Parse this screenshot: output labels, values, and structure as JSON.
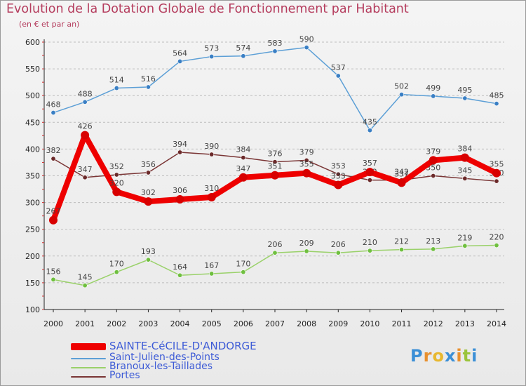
{
  "header": {
    "title": "Evolution de la Dotation Globale de Fonctionnement par Habitant",
    "subtitle": "(en € et par an)"
  },
  "logo": {
    "text": "Proxiti",
    "letters": [
      "P",
      "r",
      "o",
      "x",
      "i",
      "t",
      "i"
    ],
    "colors": [
      "#3b8fd6",
      "#e8902f",
      "#e8b82f",
      "#3b8fd6",
      "#e8902f",
      "#9ac43a",
      "#3b8fd6"
    ]
  },
  "chart_data": {
    "type": "line",
    "title": "Evolution de la Dotation Globale de Fonctionnement par Habitant",
    "ylabel": "(en € et par an)",
    "xlabel": "",
    "ylim": [
      100,
      600
    ],
    "yticks": [
      100,
      150,
      200,
      250,
      300,
      350,
      400,
      450,
      500,
      550,
      600
    ],
    "grid": true,
    "legend_position": "bottom-left",
    "x": [
      "2000",
      "2001",
      "2002",
      "2003",
      "2004",
      "2005",
      "2006",
      "2007",
      "2008",
      "2009",
      "2010",
      "2011",
      "2012",
      "2013",
      "2014"
    ],
    "series": [
      {
        "name": "Saint-Julien-des-Points",
        "color": "#5c9fd6",
        "marker_color": "#3a7fc4",
        "values": [
          468,
          488,
          514,
          516,
          564,
          573,
          574,
          583,
          590,
          537,
          435,
          502,
          499,
          495,
          485
        ],
        "labels": [
          "468",
          "488",
          "514",
          "516",
          "564",
          "573",
          "574",
          "583",
          "590",
          "537",
          "435",
          "502",
          "499",
          "495",
          "485"
        ],
        "label_pos": "above"
      },
      {
        "name": "Portes",
        "color": "#7a3535",
        "marker_color": "#6b2a2a",
        "values": [
          382,
          347,
          352,
          356,
          394,
          390,
          384,
          376,
          379,
          353,
          342,
          342,
          350,
          345,
          340
        ],
        "labels": [
          "382",
          "347",
          "352",
          "356",
          "394",
          "390",
          "384",
          "376",
          "379",
          "353",
          "342",
          "342",
          "350",
          "345",
          "340"
        ],
        "label_pos": "above"
      },
      {
        "name": "Branoux-les-Taillades",
        "color": "#9ad16a",
        "marker_color": "#6fbf3f",
        "values": [
          156,
          145,
          170,
          193,
          164,
          167,
          170,
          206,
          209,
          206,
          210,
          212,
          213,
          219,
          220
        ],
        "labels": [
          "156",
          "145",
          "170",
          "193",
          "164",
          "167",
          "170",
          "206",
          "209",
          "206",
          "210",
          "212",
          "213",
          "219",
          "220"
        ],
        "label_pos": "above"
      },
      {
        "name": "SAINTE-CéCILE-D'ANDORGE",
        "color": "#ee0000",
        "marker_color": "#d80000",
        "values": [
          267,
          426,
          320,
          302,
          306,
          310,
          347,
          351,
          355,
          333,
          357,
          337,
          379,
          384,
          355
        ],
        "labels": [
          "267",
          "426",
          "320",
          "302",
          "306",
          "310",
          "347",
          "351",
          "355",
          "333",
          "357",
          "337",
          "379",
          "384",
          "355"
        ],
        "label_pos": "above"
      }
    ],
    "legend_order": [
      "SAINTE-CéCILE-D'ANDORGE",
      "Saint-Julien-des-Points",
      "Branoux-les-Taillades",
      "Portes"
    ]
  }
}
